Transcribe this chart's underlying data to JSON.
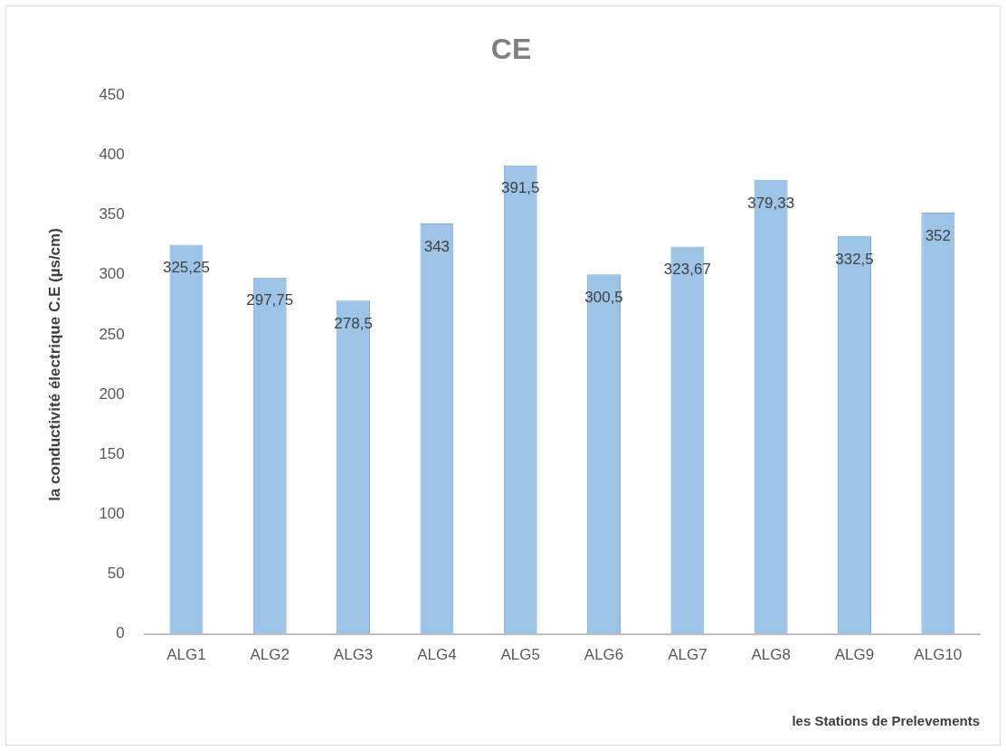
{
  "chart_data": {
    "type": "bar",
    "title": "CE",
    "xlabel": "les Stations de Prelevements",
    "ylabel": "la conductivité électrique C.E (µs/cm)",
    "categories": [
      "ALG1",
      "ALG2",
      "ALG3",
      "ALG4",
      "ALG5",
      "ALG6",
      "ALG7",
      "ALG8",
      "ALG9",
      "ALG10"
    ],
    "values": [
      325.25,
      297.75,
      278.5,
      343,
      391.5,
      300.5,
      323.67,
      379.33,
      332.5,
      352
    ],
    "value_labels": [
      "325,25",
      "297,75",
      "278,5",
      "343",
      "391,5",
      "300,5",
      "323,67",
      "379,33",
      "332,5",
      "352"
    ],
    "color": "#9dc3e6",
    "ylim": [
      0,
      450
    ],
    "yticks": [
      0,
      50,
      100,
      150,
      200,
      250,
      300,
      350,
      400,
      450
    ],
    "grid": false,
    "legend": false
  }
}
